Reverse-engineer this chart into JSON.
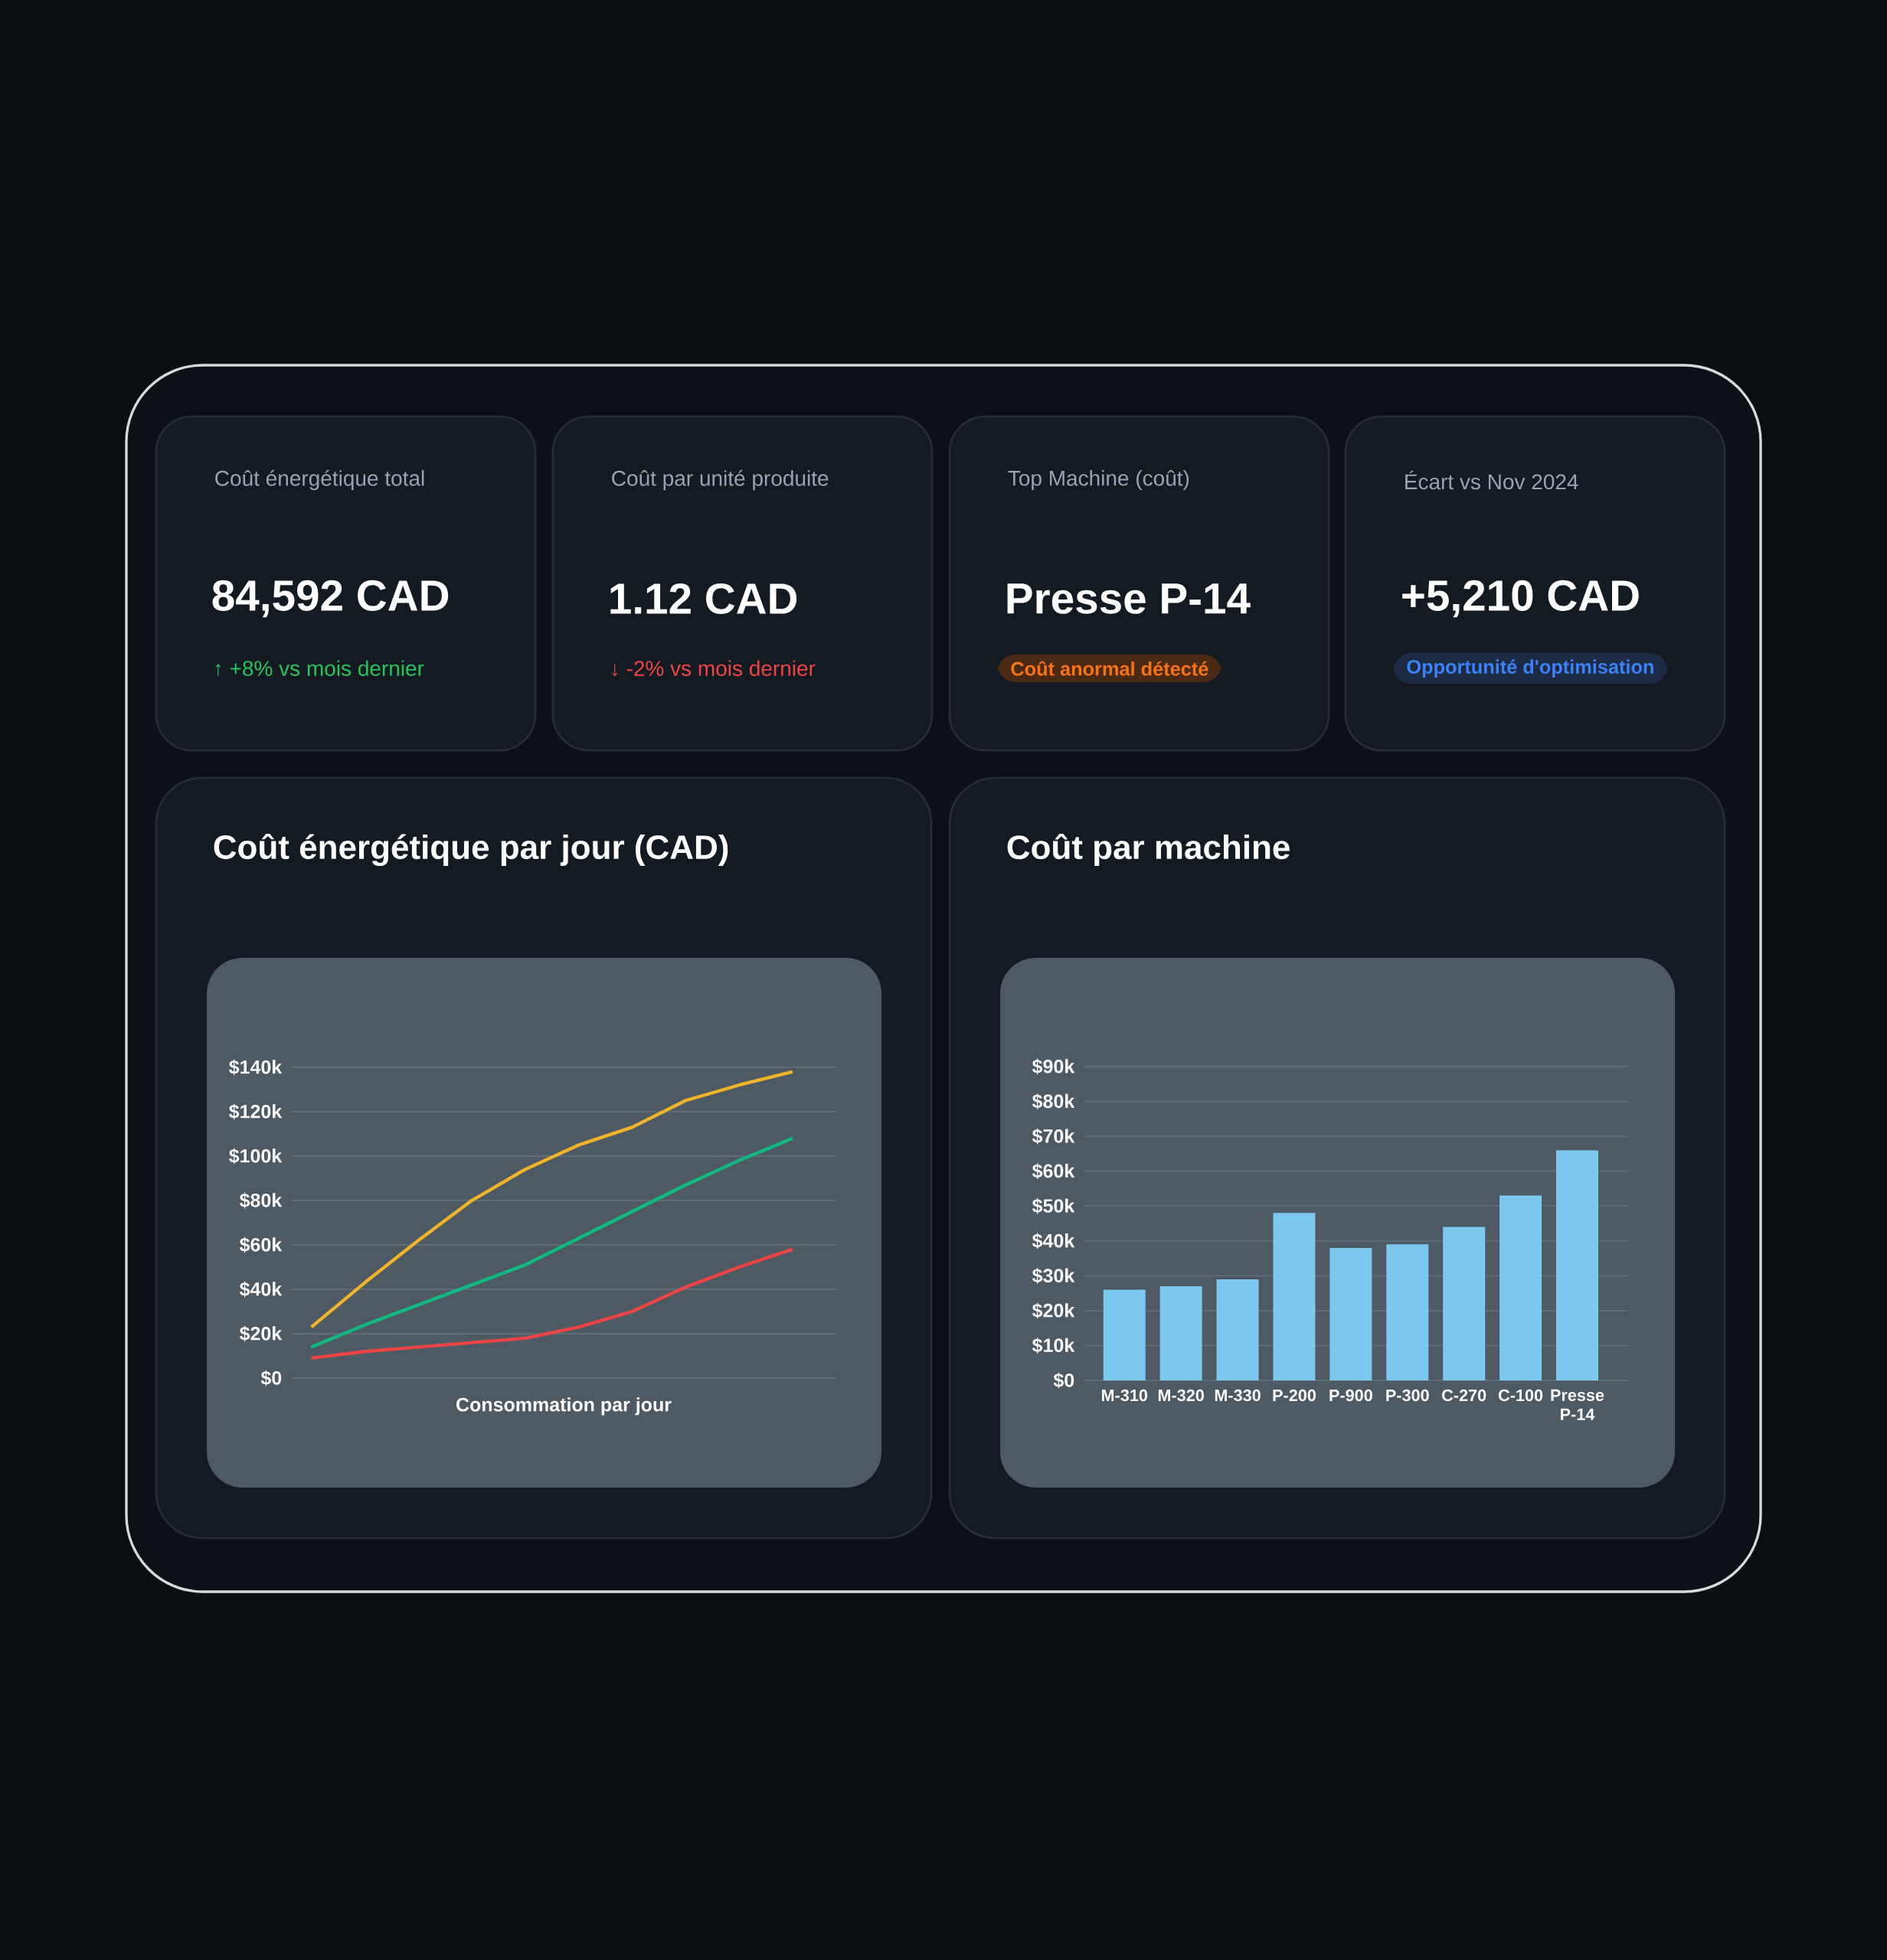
{
  "chart_data": [
    {
      "type": "other",
      "title": "Coût énergétique total",
      "annotations": [
        "84,592 CAD",
        "↑ +8% vs mois dernier"
      ]
    },
    {
      "type": "other",
      "title": "Coût par unité produite",
      "annotations": [
        "1.12 CAD",
        "↓ -2% vs mois dernier"
      ]
    },
    {
      "type": "other",
      "title": "Top Machine (coût)",
      "annotations": [
        "Presse P-14",
        "Coût anormal détecté"
      ]
    },
    {
      "type": "other",
      "title": "Écart vs Nov 2024",
      "annotations": [
        "+5,210 CAD",
        "Opportunité d'optimisation"
      ]
    },
    {
      "type": "line",
      "title": "Coût énergétique par jour (CAD)",
      "xlabel": "Consommation par jour",
      "categories": [
        null,
        null,
        null,
        null,
        null,
        null,
        null,
        null,
        null,
        null
      ],
      "series": [
        {
          "color": "#f0b429",
          "values": [
            23000,
            43000,
            62000,
            80000,
            94000,
            105000,
            113000,
            125000,
            132000,
            138000
          ]
        },
        {
          "color": "#10b981",
          "values": [
            14000,
            24000,
            33000,
            42000,
            51000,
            63000,
            75000,
            87000,
            98000,
            108000
          ]
        },
        {
          "color": "#ef4444",
          "values": [
            9000,
            12000,
            14000,
            16000,
            18000,
            23000,
            30000,
            41000,
            50000,
            58000
          ]
        }
      ],
      "ylim": [
        0,
        140000
      ],
      "yticks": [
        {
          "value": 0,
          "label": "$0"
        },
        {
          "value": 20000,
          "label": "$20k"
        },
        {
          "value": 40000,
          "label": "$40k"
        },
        {
          "value": 60000,
          "label": "$60k"
        },
        {
          "value": 80000,
          "label": "$80k"
        },
        {
          "value": 100000,
          "label": "$100k"
        },
        {
          "value": 120000,
          "label": "$120k"
        },
        {
          "value": 140000,
          "label": "$140k"
        }
      ],
      "grid": "y"
    },
    {
      "type": "bar",
      "title": "Coût par machine",
      "categories": [
        "M-310",
        "M-320",
        "M-330",
        "P-200",
        "P-900",
        "P-300",
        "C-270",
        "C-100",
        "Presse P-14"
      ],
      "values": [
        26000,
        27000,
        29000,
        48000,
        38000,
        39000,
        44000,
        53000,
        66000
      ],
      "color": "#7cc8ee",
      "ylim": [
        0,
        90000
      ],
      "yticks": [
        {
          "value": 0,
          "label": "$0"
        },
        {
          "value": 10000,
          "label": "$10k"
        },
        {
          "value": 20000,
          "label": "$20k"
        },
        {
          "value": 30000,
          "label": "$30k"
        },
        {
          "value": 40000,
          "label": "$40k"
        },
        {
          "value": 50000,
          "label": "$50k"
        },
        {
          "value": 60000,
          "label": "$60k"
        },
        {
          "value": 70000,
          "label": "$70k"
        },
        {
          "value": 80000,
          "label": "$80k"
        },
        {
          "value": 90000,
          "label": "$90k"
        }
      ],
      "grid": "y"
    }
  ]
}
